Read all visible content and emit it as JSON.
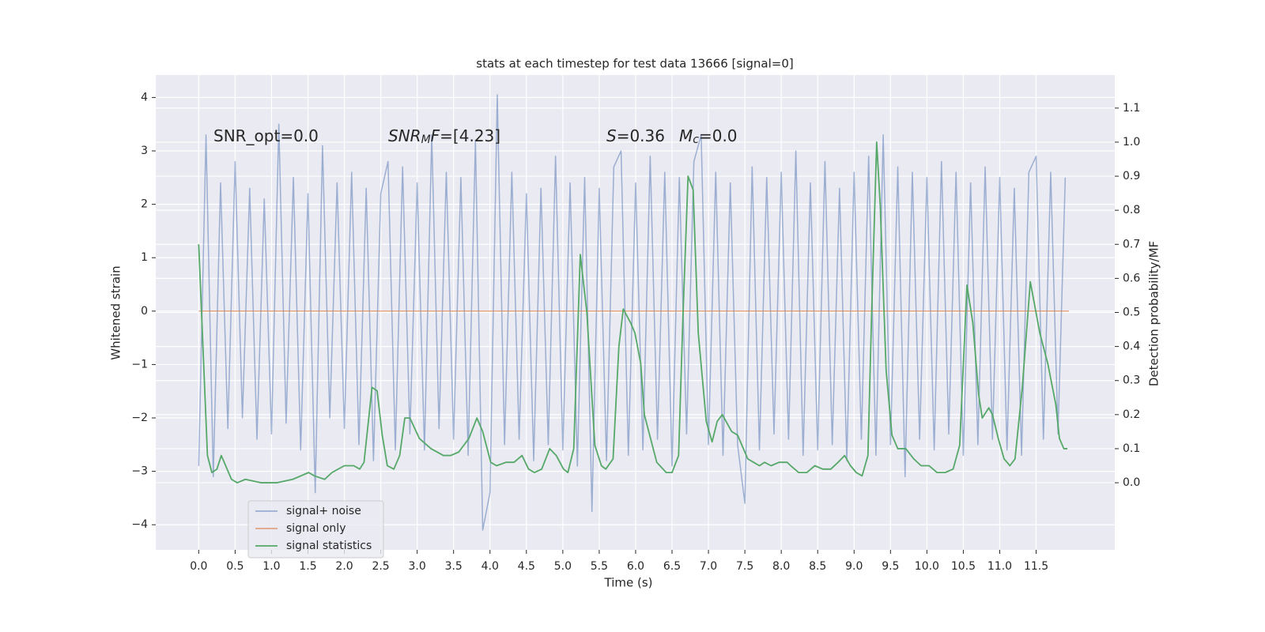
{
  "chart_data": {
    "type": "line",
    "title": "stats at each timestep for test data 13666 [signal=0]",
    "xlabel": "Time (s)",
    "ylabel": "Whitened strain",
    "y2label": "Detection probability/MF",
    "grid": true,
    "legend": "lower left",
    "xlim": [
      -0.59,
      12.58
    ],
    "ylim": [
      -4.47,
      4.42
    ],
    "y2lim": [
      -0.197,
      1.197
    ],
    "xticks": [
      {
        "value": 0,
        "label": "0.0"
      },
      0.5,
      {
        "value": 1,
        "label": "1.0"
      },
      1.5,
      {
        "value": 2,
        "label": "2.0"
      },
      2.5,
      {
        "value": 3,
        "label": "3.0"
      },
      3.5,
      {
        "value": 4,
        "label": "4.0"
      },
      4.5,
      {
        "value": 5,
        "label": "5.0"
      },
      5.5,
      {
        "value": 6,
        "label": "6.0"
      },
      6.5,
      {
        "value": 7,
        "label": "7.0"
      },
      7.5,
      {
        "value": 8,
        "label": "8.0"
      },
      8.5,
      {
        "value": 9,
        "label": "9.0"
      },
      9.5,
      {
        "value": 10,
        "label": "10.0"
      },
      10.5,
      {
        "value": 11,
        "label": "11.0"
      },
      11.5
    ],
    "yticks": [
      {
        "value": -4,
        "label": "−4"
      },
      {
        "value": -3,
        "label": "−3"
      },
      {
        "value": -2,
        "label": "−2"
      },
      {
        "value": -1,
        "label": "−1"
      },
      0,
      1,
      2,
      3,
      4
    ],
    "y2ticks": [
      {
        "value": 0,
        "label": "0.0"
      },
      0.1,
      0.2,
      0.3,
      0.4,
      0.5,
      0.6,
      0.7,
      0.8,
      0.9,
      {
        "value": 1,
        "label": "1.0"
      },
      1.1
    ],
    "annotations": [
      {
        "parts": [
          {
            "text": "SNR_opt=0.0"
          }
        ]
      },
      {
        "parts": [
          {
            "text": "SNR",
            "italic": true
          },
          {
            "text": "M",
            "italic": true,
            "sub": true
          },
          {
            "text": "F",
            "italic": true
          },
          {
            "text": "=[4.23]"
          }
        ]
      },
      {
        "parts": [
          {
            "text": "S",
            "italic": true
          },
          {
            "text": "=0.36"
          }
        ]
      },
      {
        "parts": [
          {
            "text": "M",
            "italic": true
          },
          {
            "text": "c",
            "italic": true,
            "sub": true
          },
          {
            "text": "=0.0"
          }
        ]
      }
    ],
    "series": [
      {
        "name": "signal+ noise",
        "color": "#4c72b0",
        "opacity": 0.5,
        "axis": "y",
        "x": [
          0,
          0.1,
          0.2,
          0.3,
          0.4,
          0.5,
          0.6,
          0.7,
          0.8,
          0.9,
          1,
          1.1,
          1.2,
          1.3,
          1.4,
          1.5,
          1.6,
          1.7,
          1.8,
          1.9,
          2,
          2.1,
          2.2,
          2.3,
          2.4,
          2.5,
          2.6,
          2.7,
          2.8,
          2.9,
          3,
          3.1,
          3.2,
          3.3,
          3.4,
          3.5,
          3.6,
          3.7,
          3.8,
          3.9,
          4,
          4.1,
          4.2,
          4.3,
          4.4,
          4.5,
          4.6,
          4.7,
          4.8,
          4.9,
          5,
          5.1,
          5.2,
          5.3,
          5.4,
          5.5,
          5.6,
          5.7,
          5.8,
          5.9,
          6,
          6.1,
          6.2,
          6.3,
          6.4,
          6.5,
          6.6,
          6.7,
          6.8,
          6.9,
          7,
          7.1,
          7.2,
          7.3,
          7.4,
          7.5,
          7.6,
          7.7,
          7.8,
          7.9,
          8,
          8.1,
          8.2,
          8.3,
          8.4,
          8.5,
          8.6,
          8.7,
          8.8,
          8.9,
          9,
          9.1,
          9.2,
          9.3,
          9.4,
          9.5,
          9.6,
          9.7,
          9.8,
          9.9,
          10,
          10.1,
          10.2,
          10.3,
          10.4,
          10.5,
          10.6,
          10.7,
          10.8,
          10.9,
          11,
          11.1,
          11.2,
          11.3,
          11.4,
          11.5,
          11.6,
          11.7,
          11.8,
          11.9
        ],
        "values": [
          -2.9,
          3.3,
          -3.1,
          2.4,
          -2.2,
          2.8,
          -2.0,
          2.3,
          -2.4,
          2.1,
          -2.3,
          3.5,
          -2.1,
          2.5,
          -2.6,
          2.2,
          -3.4,
          3.1,
          -2.0,
          2.4,
          -2.2,
          2.6,
          -2.5,
          2.3,
          -2.8,
          2.2,
          2.8,
          -2.6,
          2.7,
          -2.3,
          2.4,
          -2.6,
          3.3,
          -2.2,
          2.6,
          -2.4,
          2.5,
          -2.7,
          3.2,
          -4.1,
          -3.4,
          4.05,
          -2.5,
          2.6,
          -2.4,
          2.2,
          -2.8,
          2.3,
          -2.5,
          2.9,
          -2.6,
          2.4,
          -2.9,
          2.5,
          -3.75,
          2.3,
          -2.8,
          2.7,
          3.0,
          -2.7,
          2.4,
          -2.6,
          2.9,
          -2.4,
          2.6,
          -2.9,
          2.5,
          -2.3,
          2.8,
          3.3,
          -2.5,
          2.6,
          -2.7,
          2.4,
          -2.5,
          -3.6,
          2.7,
          -2.6,
          2.5,
          -2.3,
          2.6,
          -2.4,
          3.0,
          -2.7,
          2.4,
          -2.6,
          2.8,
          -2.5,
          2.3,
          -2.8,
          2.6,
          -2.4,
          2.9,
          -2.7,
          3.3,
          -2.5,
          2.7,
          -3.1,
          2.6,
          -2.4,
          2.5,
          -2.6,
          2.8,
          -2.3,
          2.6,
          -2.7,
          2.4,
          -2.5,
          2.7,
          -2.4,
          2.5,
          -2.6,
          2.3,
          -2.7,
          2.6,
          2.9,
          -2.4,
          2.6,
          -2.3,
          2.5
        ]
      },
      {
        "name": "signal only",
        "color": "#dd8452",
        "opacity": 0.7,
        "axis": "y",
        "x": [
          0,
          11.95
        ],
        "values": [
          0,
          0
        ]
      },
      {
        "name": "signal statistics",
        "color": "#55a868",
        "opacity": 1,
        "axis": "y2",
        "x": [
          0,
          0.12,
          0.18,
          0.25,
          0.31,
          0.45,
          0.53,
          0.64,
          0.86,
          1.07,
          1.29,
          1.51,
          1.59,
          1.73,
          1.83,
          2.0,
          2.13,
          2.21,
          2.27,
          2.38,
          2.45,
          2.52,
          2.59,
          2.68,
          2.76,
          2.83,
          2.9,
          3.03,
          3.19,
          3.36,
          3.46,
          3.57,
          3.71,
          3.82,
          3.9,
          4.01,
          4.09,
          4.22,
          4.33,
          4.44,
          4.53,
          4.61,
          4.71,
          4.82,
          4.91,
          5.01,
          5.07,
          5.15,
          5.24,
          5.33,
          5.44,
          5.53,
          5.59,
          5.69,
          5.77,
          5.83,
          5.93,
          5.99,
          6.07,
          6.12,
          6.29,
          6.42,
          6.5,
          6.59,
          6.65,
          6.72,
          6.79,
          6.86,
          6.97,
          7.05,
          7.12,
          7.19,
          7.32,
          7.4,
          7.54,
          7.62,
          7.7,
          7.77,
          7.86,
          7.97,
          8.08,
          8.13,
          8.24,
          8.35,
          8.46,
          8.57,
          8.68,
          8.78,
          8.87,
          8.95,
          9.03,
          9.11,
          9.19,
          9.24,
          9.31,
          9.36,
          9.44,
          9.52,
          9.6,
          9.71,
          9.82,
          9.92,
          10.03,
          10.14,
          10.25,
          10.36,
          10.45,
          10.55,
          10.63,
          10.71,
          10.76,
          10.85,
          10.9,
          10.98,
          11.06,
          11.14,
          11.21,
          11.31,
          11.42,
          11.55,
          11.66,
          11.77,
          11.82,
          11.88,
          11.93
        ],
        "values": [
          0.7,
          0.08,
          0.03,
          0.04,
          0.08,
          0.01,
          0.0,
          0.01,
          0.0,
          0.0,
          0.01,
          0.03,
          0.02,
          0.01,
          0.03,
          0.05,
          0.05,
          0.04,
          0.06,
          0.28,
          0.27,
          0.14,
          0.05,
          0.04,
          0.08,
          0.19,
          0.19,
          0.13,
          0.1,
          0.08,
          0.08,
          0.09,
          0.13,
          0.19,
          0.15,
          0.06,
          0.05,
          0.06,
          0.06,
          0.08,
          0.04,
          0.03,
          0.04,
          0.1,
          0.08,
          0.04,
          0.03,
          0.1,
          0.67,
          0.5,
          0.11,
          0.05,
          0.04,
          0.07,
          0.4,
          0.51,
          0.47,
          0.44,
          0.35,
          0.2,
          0.06,
          0.03,
          0.03,
          0.08,
          0.49,
          0.9,
          0.86,
          0.44,
          0.18,
          0.12,
          0.18,
          0.2,
          0.15,
          0.14,
          0.07,
          0.06,
          0.05,
          0.06,
          0.05,
          0.06,
          0.06,
          0.05,
          0.03,
          0.03,
          0.05,
          0.04,
          0.04,
          0.06,
          0.08,
          0.05,
          0.03,
          0.02,
          0.08,
          0.49,
          1.0,
          0.81,
          0.33,
          0.14,
          0.1,
          0.1,
          0.07,
          0.05,
          0.05,
          0.03,
          0.03,
          0.04,
          0.11,
          0.58,
          0.47,
          0.26,
          0.19,
          0.22,
          0.2,
          0.13,
          0.07,
          0.05,
          0.07,
          0.28,
          0.59,
          0.44,
          0.35,
          0.23,
          0.13,
          0.1,
          0.1
        ]
      }
    ]
  }
}
